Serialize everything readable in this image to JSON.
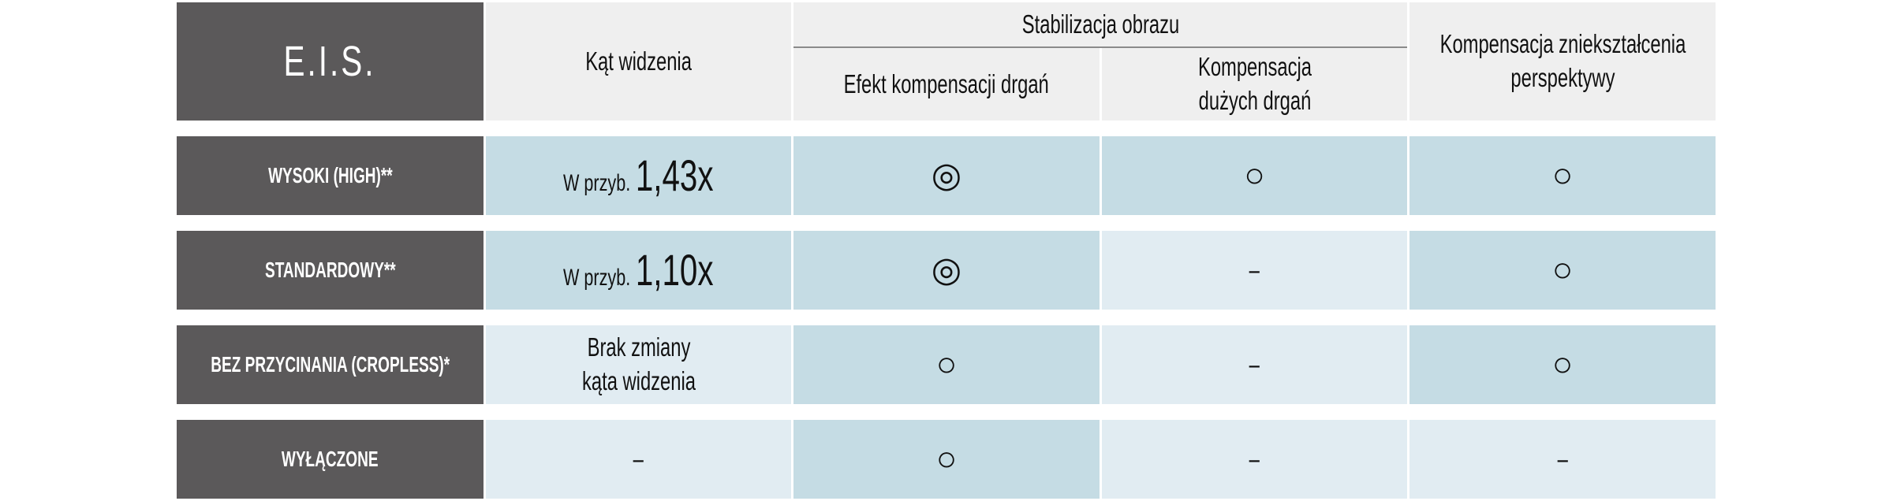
{
  "header": {
    "eis": "E.I.S.",
    "angle": "Kąt widzenia",
    "stabilization": "Stabilizacja obrazu",
    "shake_effect": "Efekt kompensacji drgań",
    "large_shake_line1": "Kompensacja",
    "large_shake_line2": "dużych drgań",
    "perspective_line1": "Kompensacja zniekształcenia",
    "perspective_line2": "perspektywy"
  },
  "legend_symbols": {
    "double_circle": "◎",
    "circle": "○",
    "dash": "–"
  },
  "colors": {
    "label_bg": "#5b595a",
    "header_bg": "#efefef",
    "supported_bg": "#c5dce4",
    "unsupported_bg": "#e1ecf2"
  },
  "rows": [
    {
      "label": "WYSOKI (HIGH)**",
      "angle_prefix": "W przyb.",
      "angle_value": "1,43x",
      "shake": "◎",
      "large_shake": "○",
      "perspective": "○"
    },
    {
      "label": "STANDARDOWY**",
      "angle_prefix": "W przyb.",
      "angle_value": "1,10x",
      "shake": "◎",
      "large_shake": "–",
      "perspective": "○"
    },
    {
      "label": "BEZ PRZYCINANIA (CROPLESS)*",
      "angle_line1": "Brak zmiany",
      "angle_line2": "kąta widzenia",
      "shake": "○",
      "large_shake": "–",
      "perspective": "○"
    },
    {
      "label": "WYŁĄCZONE",
      "angle": "–",
      "shake": "○",
      "large_shake": "–",
      "perspective": "–"
    }
  ]
}
